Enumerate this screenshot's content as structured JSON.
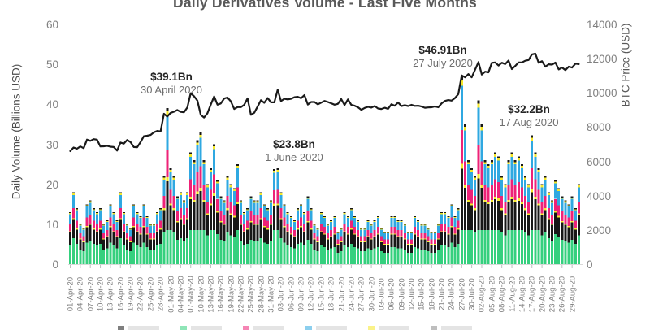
{
  "chart_data": {
    "type": "stacked_bar_with_line",
    "title": "Daily Derivatives Volume - Last Five Months",
    "left_axis": {
      "label": "Daily Volume (Billions USD)",
      "tick_labels": [
        "60",
        "50",
        "40",
        "30",
        "20",
        "10",
        "0"
      ],
      "range": [
        0,
        60
      ],
      "grid": false
    },
    "right_axis": {
      "label": "BTC Price (USD)",
      "tick_labels": [
        "14000",
        "12000",
        "10000",
        "8000",
        "6000",
        "4000",
        "2000",
        "0"
      ],
      "range": [
        0,
        14000
      ],
      "grid": false
    },
    "x_axis": {
      "first_label": "01-Apr-20",
      "last_label": "29-Aug-20",
      "label_every_n_days": 3,
      "tick_labels": [
        "01-Apr-20",
        "04-Apr-20",
        "07-Apr-20",
        "10-Apr-20",
        "13-Apr-20",
        "16-Apr-20",
        "19-Apr-20",
        "22-Apr-20",
        "25-Apr-20",
        "28-Apr-20",
        "01-May-20",
        "04-May-20",
        "07-May-20",
        "10-May-20",
        "13-May-20",
        "16-May-20",
        "19-May-20",
        "22-May-20",
        "25-May-20",
        "28-May-20",
        "31-May-20",
        "03-Jun-20",
        "06-Jun-20",
        "09-Jun-20",
        "12-Jun-20",
        "15-Jun-20",
        "18-Jun-20",
        "21-Jun-20",
        "24-Jun-20",
        "27-Jun-20",
        "30-Jun-20",
        "03-Jul-20",
        "06-Jul-20",
        "09-Jul-20",
        "12-Jul-20",
        "15-Jul-20",
        "18-Jul-20",
        "21-Jul-20",
        "24-Jul-20",
        "27-Jul-20",
        "30-Jul-20",
        "02-Aug-20",
        "05-Aug-20",
        "08-Aug-20",
        "11-Aug-20",
        "14-Aug-20",
        "17-Aug-20",
        "20-Aug-20",
        "23-Aug-20",
        "26-Aug-20",
        "29-Aug-20"
      ]
    },
    "stack": {
      "order_bottom_to_top": [
        {
          "name": "segment-green",
          "color": "#35D07E"
        },
        {
          "name": "segment-black",
          "color": "#171717"
        },
        {
          "name": "segment-yellow-lower",
          "color": "#F6E829"
        },
        {
          "name": "segment-pink",
          "color": "#EE2277"
        },
        {
          "name": "segment-blue",
          "color": "#2FA8E1"
        },
        {
          "name": "segment-yellow-upper",
          "color": "#F6E829"
        },
        {
          "name": "segment-black-cap",
          "color": "#171717"
        }
      ],
      "green_cap_bn": 8.5,
      "green_fraction": 0.36,
      "upper_weights": [
        0.4,
        0.032,
        0.22,
        0.29,
        0.033,
        0.025
      ]
    },
    "daily_total_volume_bn": [
      13,
      18,
      14,
      10,
      9,
      15,
      16,
      14,
      13,
      14,
      10,
      11,
      15,
      13,
      11,
      18,
      13,
      10,
      9,
      15,
      13,
      12,
      15,
      12,
      10,
      10,
      13,
      14,
      22,
      39.1,
      24,
      22,
      17,
      18,
      16,
      18,
      28,
      26,
      31,
      33,
      26,
      20,
      24,
      30,
      21,
      17,
      16,
      22,
      20,
      19,
      25,
      16,
      13,
      14,
      17,
      16,
      16,
      18,
      15,
      14,
      16,
      23.8,
      24,
      18,
      15,
      13,
      12,
      11,
      14,
      15,
      13,
      17,
      14,
      10,
      9,
      13,
      12,
      10,
      11,
      12,
      8,
      9,
      13,
      12,
      14,
      12,
      11,
      9,
      9,
      11,
      10,
      11,
      12,
      9,
      8,
      8,
      12,
      12,
      11,
      11,
      10,
      8,
      8,
      12,
      11,
      10,
      10,
      9,
      8,
      8,
      10,
      13,
      13,
      12,
      15,
      12,
      14,
      46.91,
      35,
      26,
      24,
      22,
      41,
      35,
      26,
      25,
      26,
      28,
      27,
      22,
      20,
      26,
      28,
      26,
      27,
      25,
      22,
      20,
      32.2,
      28,
      24,
      20,
      22,
      18,
      16,
      21,
      19,
      17,
      16,
      15,
      17,
      14,
      20
    ],
    "btc_price_usd": [
      6600,
      6810,
      6740,
      6870,
      6770,
      7270,
      7200,
      7300,
      7270,
      6870,
      6880,
      6910,
      6860,
      6840,
      6630,
      7100,
      7040,
      7250,
      7130,
      6840,
      6830,
      7130,
      7470,
      7500,
      7540,
      7700,
      7780,
      7750,
      8780,
      8620,
      8830,
      8900,
      9000,
      8890,
      8870,
      9150,
      9980,
      9800,
      9550,
      8720,
      8560,
      8810,
      9310,
      9790,
      9310,
      9380,
      9670,
      9730,
      9510,
      9060,
      9170,
      9170,
      9300,
      9680,
      8720,
      8840,
      9200,
      9570,
      9420,
      9700,
      9450,
      9450,
      10180,
      9520,
      9660,
      9620,
      9660,
      9750,
      9770,
      9690,
      9870,
      9320,
      9470,
      9470,
      9330,
      9430,
      9530,
      9470,
      9390,
      9310,
      9360,
      9640,
      9290,
      9620,
      9300,
      9250,
      9160,
      9010,
      9120,
      9190,
      9140,
      9230,
      9090,
      9060,
      9130,
      9070,
      9340,
      9250,
      9440,
      9230,
      9280,
      9230,
      9300,
      9240,
      9250,
      9200,
      9130,
      9150,
      9160,
      9210,
      9160,
      9390,
      9530,
      9580,
      9550,
      9700,
      9930,
      11020,
      10910,
      11100,
      10910,
      11350,
      11800,
      11070,
      11240,
      11200,
      11750,
      11780,
      11600,
      11760,
      11680,
      11890,
      11390,
      11570,
      11780,
      11780,
      11880,
      11920,
      12250,
      12290,
      11760,
      11850,
      11530,
      11670,
      11650,
      11770,
      11370,
      11480,
      11330,
      11530,
      11480,
      11710,
      11680
    ],
    "line": {
      "name": "BTC Price",
      "color": "#1A1A1A",
      "width": 2.2
    },
    "annotations": [
      {
        "value": "$39.1Bn",
        "date": "30 April 2020",
        "day_index": 29
      },
      {
        "value": "$23.8Bn",
        "date": "1 June 2020",
        "day_index": 61
      },
      {
        "value": "$46.91Bn",
        "date": "27 July 2020",
        "day_index": 117
      },
      {
        "value": "$32.2Bn",
        "date": "17 Aug 2020",
        "day_index": 138
      }
    ],
    "legend": {
      "position": "bottom",
      "cropped": true,
      "swatch_colors": [
        "#171717",
        "#35D07E",
        "#EE2277",
        "#2FA8E1",
        "#F6E829",
        "#8a8a8a"
      ]
    }
  }
}
